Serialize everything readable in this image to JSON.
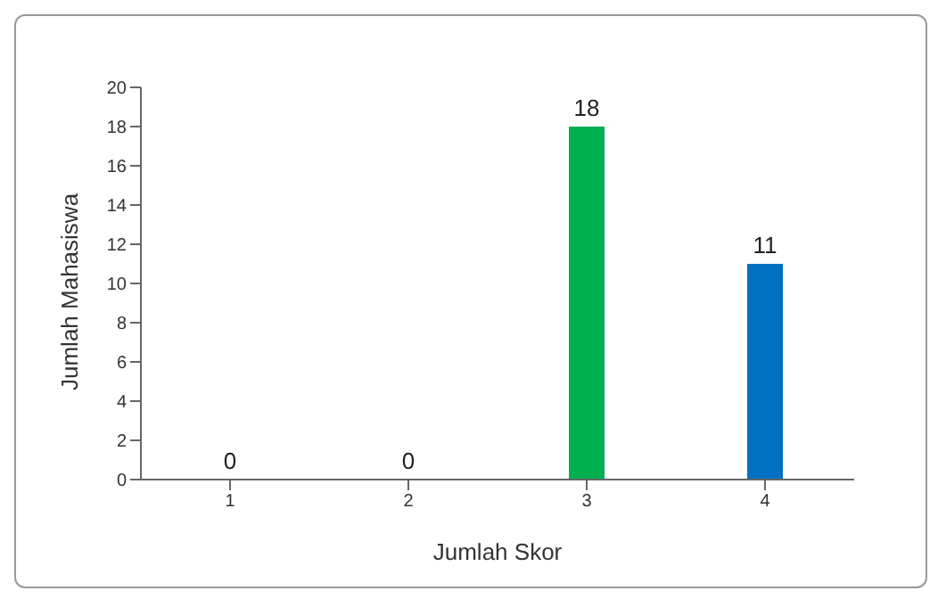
{
  "chart_data": {
    "type": "bar",
    "categories": [
      "1",
      "2",
      "3",
      "4"
    ],
    "values": [
      0,
      0,
      18,
      11
    ],
    "colors": [
      "#c00000",
      "#c8c800",
      "#00b050",
      "#0070c0"
    ],
    "ylim": [
      0,
      20
    ],
    "yticks": [
      0,
      2,
      4,
      6,
      8,
      10,
      12,
      14,
      16,
      18,
      20
    ],
    "xlabel": "Jumlah Skor",
    "ylabel": "Jumlah Mahasiswa",
    "data_labels": true
  }
}
